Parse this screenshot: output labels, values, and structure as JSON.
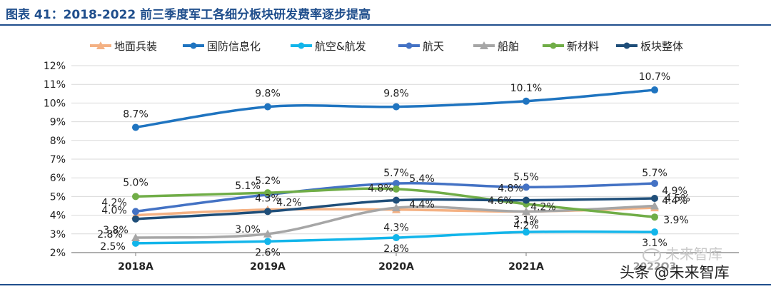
{
  "title": "图表 41：2018-2022 前三季度军工各细分板块研发费率逐步提高",
  "watermark": {
    "logo_text": "未来智库",
    "source_text": "头条 @未来智库"
  },
  "chart_data": {
    "type": "line",
    "title": "图表 41：2018-2022 前三季度军工各细分板块研发费率逐步提高",
    "categories": [
      "2018A",
      "2019A",
      "2020A",
      "2021A",
      "2022Q3"
    ],
    "y_ticks": [
      "2%",
      "3%",
      "4%",
      "5%",
      "6%",
      "7%",
      "8%",
      "9%",
      "10%",
      "11%",
      "12%"
    ],
    "ylim": [
      2,
      12
    ],
    "grid": true,
    "legend_position": "top",
    "series": [
      {
        "name": "地面兵装",
        "color": "#f4b183",
        "marker": "triangle",
        "values": [
          4.0,
          4.3,
          4.3,
          4.2,
          4.4
        ],
        "labels": [
          "4.0%",
          "4.3%",
          "4.3%",
          "4.2%",
          "4.4%"
        ]
      },
      {
        "name": "国防信息化",
        "color": "#1f74c0",
        "marker": "circle",
        "values": [
          8.7,
          9.8,
          9.8,
          10.1,
          10.7
        ],
        "labels": [
          "8.7%",
          "9.8%",
          "9.8%",
          "10.1%",
          "10.7%"
        ]
      },
      {
        "name": "航空&航发",
        "color": "#12b5ea",
        "marker": "circle",
        "values": [
          2.5,
          2.6,
          2.8,
          3.1,
          3.1
        ],
        "labels": [
          "2.5%",
          "2.6%",
          "2.8%",
          "3.1%",
          "3.1%"
        ]
      },
      {
        "name": "航天",
        "color": "#4472c4",
        "marker": "circle",
        "values": [
          4.2,
          5.1,
          5.7,
          5.5,
          5.7
        ],
        "labels": [
          "4.2%",
          "5.1%",
          "5.7%",
          "5.5%",
          "5.7%"
        ]
      },
      {
        "name": "船舶",
        "color": "#a6a6a6",
        "marker": "triangle",
        "values": [
          2.8,
          3.0,
          4.4,
          4.2,
          4.5
        ],
        "labels": [
          "2.8%",
          "3.0%",
          "4.4%",
          "4.2%",
          "4.5%"
        ]
      },
      {
        "name": "新材料",
        "color": "#70ad47",
        "marker": "circle",
        "values": [
          5.0,
          5.2,
          5.4,
          4.6,
          3.9
        ],
        "labels": [
          "5.0%",
          "5.2%",
          "5.4%",
          "4.6%",
          "3.9%"
        ]
      },
      {
        "name": "板块整体",
        "color": "#1f4e79",
        "marker": "circle",
        "values": [
          3.8,
          4.2,
          4.8,
          4.8,
          4.9
        ],
        "labels": [
          "3.8%",
          "4.2%",
          "4.8%",
          "4.8%",
          "4.9%"
        ]
      }
    ]
  }
}
